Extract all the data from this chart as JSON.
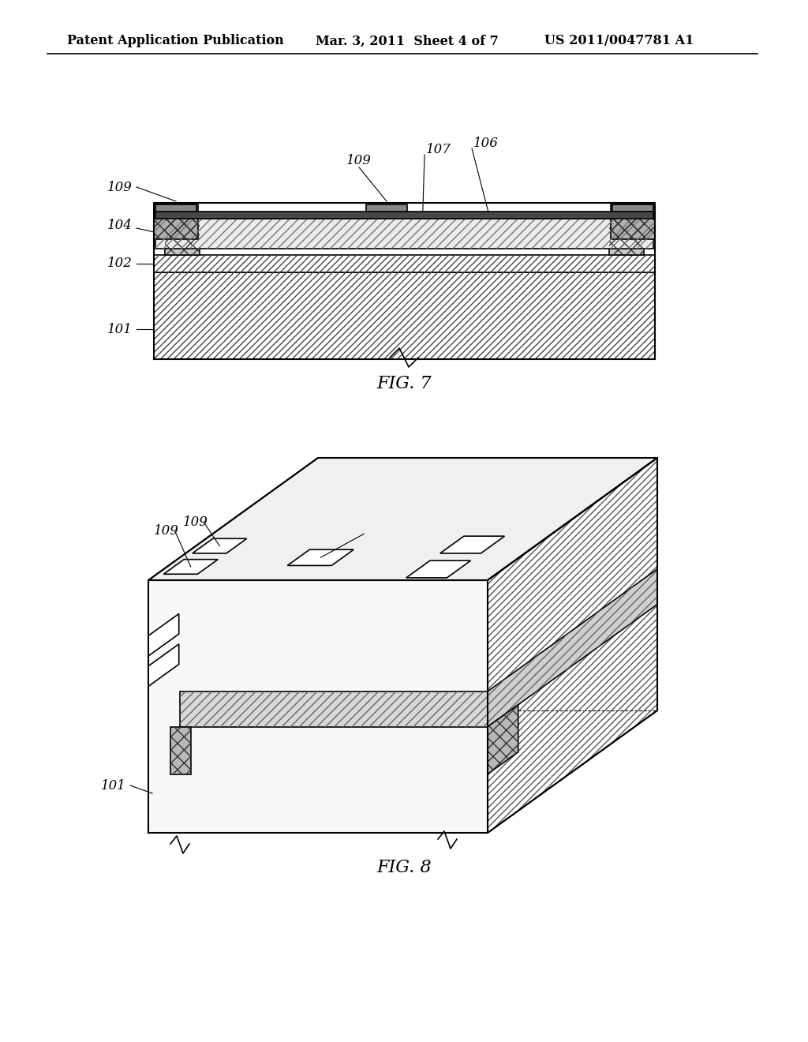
{
  "background_color": "#ffffff",
  "header_left": "Patent Application Publication",
  "header_mid": "Mar. 3, 2011  Sheet 4 of 7",
  "header_right": "US 2011/0047781 A1",
  "fig7_label": "FIG. 7",
  "fig8_label": "FIG. 8",
  "line_color": "#000000",
  "header_fontsize": 11.5,
  "label_fontsize": 12,
  "caption_fontsize": 16
}
